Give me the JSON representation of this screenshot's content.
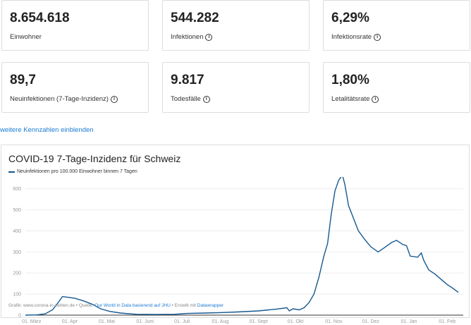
{
  "stats": [
    {
      "value": "8.654.618",
      "label": "Einwohner",
      "info": false
    },
    {
      "value": "544.282",
      "label": "Infektionen",
      "info": true
    },
    {
      "value": "6,29%",
      "label": "Infektionsrate",
      "info": true
    },
    {
      "value": "89,7",
      "label": "Neuinfektionen (7-Tage-Inzidenz)",
      "info": true
    },
    {
      "value": "9.817",
      "label": "Todesfälle",
      "info": true
    },
    {
      "value": "1,80%",
      "label": "Letalitätsrate",
      "info": true
    }
  ],
  "info_glyph": "i",
  "more_link": "weitere Kennzahlen einblenden",
  "footer": {
    "prefix": "Grafik: www.corona-in-zahlen.de • Quelle: ",
    "source": "Our World in Data basierend auf JHU",
    "mid": " • Erstellt mit ",
    "tool": "Datawrapper"
  },
  "colors": {
    "line": "#15588f",
    "link": "#1a7bd2"
  },
  "chart_data": {
    "type": "line",
    "title": "COVID-19 7-Tage-Inzidenz für Schweiz",
    "legend": [
      "Neuinfektionen pro 100.000 Einwohner binnen 7 Tagen"
    ],
    "ylim": [
      0,
      620
    ],
    "yticks": [
      0,
      100,
      200,
      300,
      400,
      500,
      600
    ],
    "xticks": [
      {
        "date": "2020-03-01",
        "label": "01. März"
      },
      {
        "date": "2020-04-01",
        "label": "01. Apr"
      },
      {
        "date": "2020-05-01",
        "label": "01. Mai"
      },
      {
        "date": "2020-06-01",
        "label": "01. Juni"
      },
      {
        "date": "2020-07-01",
        "label": "01. Juli"
      },
      {
        "date": "2020-08-01",
        "label": "01. Aug"
      },
      {
        "date": "2020-09-01",
        "label": "01. Sept"
      },
      {
        "date": "2020-10-01",
        "label": "01. Okt"
      },
      {
        "date": "2020-11-01",
        "label": "01. Nov"
      },
      {
        "date": "2020-12-01",
        "label": "01. Dez"
      },
      {
        "date": "2021-01-01",
        "label": "01. Jan"
      },
      {
        "date": "2021-02-01",
        "label": "01. Feb"
      }
    ],
    "xrange": [
      "2020-02-25",
      "2021-02-14"
    ],
    "series": [
      {
        "name": "Neuinfektionen pro 100.000 Einwohner binnen 7 Tagen",
        "points": [
          [
            "2020-02-25",
            0
          ],
          [
            "2020-03-05",
            1
          ],
          [
            "2020-03-12",
            6
          ],
          [
            "2020-03-18",
            25
          ],
          [
            "2020-03-22",
            55
          ],
          [
            "2020-03-26",
            88
          ],
          [
            "2020-03-30",
            85
          ],
          [
            "2020-04-05",
            80
          ],
          [
            "2020-04-12",
            68
          ],
          [
            "2020-04-20",
            50
          ],
          [
            "2020-04-26",
            30
          ],
          [
            "2020-05-03",
            18
          ],
          [
            "2020-05-12",
            10
          ],
          [
            "2020-05-25",
            4
          ],
          [
            "2020-06-10",
            3
          ],
          [
            "2020-06-25",
            4
          ],
          [
            "2020-07-05",
            8
          ],
          [
            "2020-07-20",
            10
          ],
          [
            "2020-08-01",
            12
          ],
          [
            "2020-08-15",
            15
          ],
          [
            "2020-09-01",
            20
          ],
          [
            "2020-09-15",
            28
          ],
          [
            "2020-09-24",
            35
          ],
          [
            "2020-09-26",
            20
          ],
          [
            "2020-09-29",
            30
          ],
          [
            "2020-10-04",
            25
          ],
          [
            "2020-10-08",
            35
          ],
          [
            "2020-10-12",
            60
          ],
          [
            "2020-10-16",
            100
          ],
          [
            "2020-10-20",
            180
          ],
          [
            "2020-10-24",
            280
          ],
          [
            "2020-10-27",
            340
          ],
          [
            "2020-10-30",
            480
          ],
          [
            "2020-11-02",
            590
          ],
          [
            "2020-11-05",
            640
          ],
          [
            "2020-11-08",
            665
          ],
          [
            "2020-11-10",
            620
          ],
          [
            "2020-11-13",
            520
          ],
          [
            "2020-11-17",
            460
          ],
          [
            "2020-11-21",
            400
          ],
          [
            "2020-11-26",
            360
          ],
          [
            "2020-12-01",
            325
          ],
          [
            "2020-12-07",
            300
          ],
          [
            "2020-12-12",
            320
          ],
          [
            "2020-12-18",
            345
          ],
          [
            "2020-12-22",
            355
          ],
          [
            "2020-12-27",
            335
          ],
          [
            "2020-12-30",
            330
          ],
          [
            "2021-01-02",
            280
          ],
          [
            "2021-01-08",
            275
          ],
          [
            "2021-01-11",
            295
          ],
          [
            "2021-01-13",
            260
          ],
          [
            "2021-01-17",
            215
          ],
          [
            "2021-01-22",
            195
          ],
          [
            "2021-01-27",
            170
          ],
          [
            "2021-02-01",
            145
          ],
          [
            "2021-02-05",
            130
          ],
          [
            "2021-02-10",
            108
          ]
        ]
      }
    ]
  }
}
